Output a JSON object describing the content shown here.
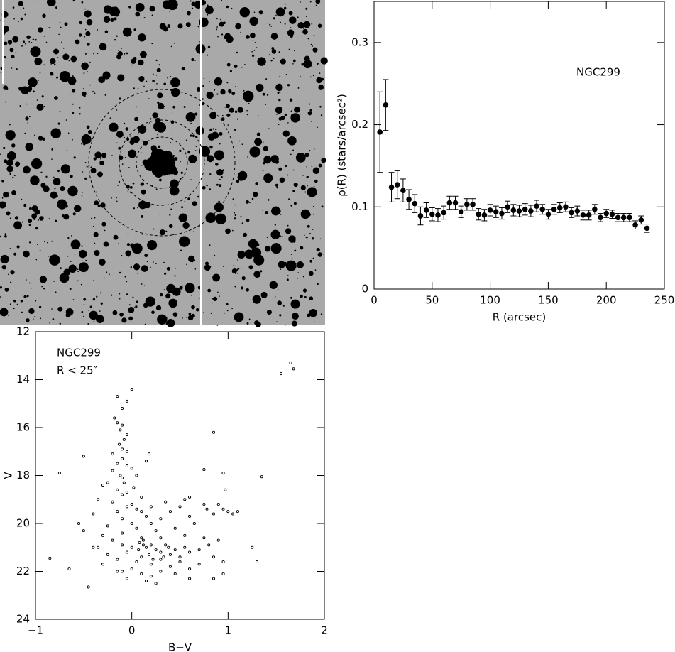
{
  "chart_data": [
    {
      "type": "errorbar",
      "annotation": "NGC299",
      "xlabel": "R (arcsec)",
      "ylabel": "ρ(R)  (stars/arcsec²)",
      "x": [
        5,
        10,
        15,
        20,
        25,
        30,
        35,
        40,
        45,
        50,
        55,
        60,
        65,
        70,
        75,
        80,
        85,
        90,
        95,
        100,
        105,
        110,
        115,
        120,
        125,
        130,
        135,
        140,
        145,
        150,
        155,
        160,
        165,
        170,
        175,
        180,
        185,
        190,
        195,
        200,
        205,
        210,
        215,
        220,
        225,
        230,
        235
      ],
      "values": [
        0.191,
        0.224,
        0.124,
        0.127,
        0.12,
        0.109,
        0.104,
        0.089,
        0.096,
        0.091,
        0.09,
        0.093,
        0.105,
        0.105,
        0.094,
        0.103,
        0.103,
        0.091,
        0.09,
        0.096,
        0.094,
        0.092,
        0.1,
        0.096,
        0.095,
        0.097,
        0.095,
        0.101,
        0.097,
        0.091,
        0.097,
        0.099,
        0.1,
        0.093,
        0.095,
        0.09,
        0.09,
        0.097,
        0.087,
        0.092,
        0.091,
        0.087,
        0.087,
        0.087,
        0.078,
        0.084,
        0.074
      ],
      "errors": [
        0.049,
        0.031,
        0.018,
        0.017,
        0.014,
        0.012,
        0.011,
        0.011,
        0.009,
        0.008,
        0.008,
        0.008,
        0.008,
        0.008,
        0.007,
        0.007,
        0.007,
        0.007,
        0.007,
        0.007,
        0.007,
        0.007,
        0.007,
        0.007,
        0.007,
        0.007,
        0.007,
        0.007,
        0.006,
        0.006,
        0.006,
        0.006,
        0.006,
        0.006,
        0.006,
        0.006,
        0.006,
        0.006,
        0.005,
        0.005,
        0.005,
        0.005,
        0.005,
        0.005,
        0.005,
        0.005,
        0.005
      ],
      "xlim": [
        0,
        250
      ],
      "xticks": [
        0,
        50,
        100,
        150,
        200,
        250
      ],
      "ylim": [
        0,
        0.35
      ],
      "yticks": [
        0,
        0.1,
        0.2,
        0.3
      ],
      "color": "#000000"
    },
    {
      "type": "scatter",
      "annotations": [
        "NGC299",
        "R < 25″"
      ],
      "xlabel": "B−V",
      "ylabel": "V",
      "x": [
        0.0,
        -0.15,
        -0.05,
        -0.1,
        -0.18,
        -0.15,
        -0.1,
        -0.12,
        -0.05,
        -0.08,
        -0.13,
        -0.1,
        -0.05,
        -0.2,
        -0.1,
        -0.15,
        -0.05,
        0.0,
        -0.2,
        -0.12,
        0.05,
        -0.1,
        -0.25,
        -0.08,
        0.02,
        -0.15,
        -0.05,
        -0.1,
        0.15,
        0.18,
        -0.3,
        0.1,
        -0.35,
        -0.2,
        0.0,
        -0.05,
        0.05,
        -0.15,
        0.1,
        0.2,
        0.35,
        0.4,
        0.55,
        0.6,
        0.5,
        0.3,
        0.15,
        -0.1,
        -0.4,
        -0.55,
        -0.25,
        0.0,
        0.05,
        0.2,
        0.45,
        0.65,
        0.6,
        0.75,
        0.78,
        0.85,
        0.9,
        0.95,
        1.0,
        1.05,
        1.1,
        0.97,
        0.25,
        -0.1,
        -0.3,
        0.1,
        0.3,
        0.55,
        -0.5,
        -0.4,
        -0.35,
        -0.2,
        -0.1,
        0.0,
        0.08,
        0.12,
        0.15,
        0.2,
        0.25,
        0.3,
        0.35,
        0.4,
        0.45,
        0.5,
        0.55,
        0.6,
        0.7,
        0.75,
        0.8,
        0.85,
        0.9,
        0.95,
        -0.25,
        -0.15,
        -0.05,
        0.05,
        0.1,
        0.2,
        0.3,
        0.4,
        0.5,
        0.6,
        0.7,
        -0.3,
        -0.1,
        0.0,
        0.1,
        0.2,
        0.3,
        0.45,
        0.6,
        0.85,
        0.95,
        -0.05,
        0.15,
        0.25,
        -0.15,
        0.07,
        0.18,
        0.22,
        0.33,
        0.38,
        0.12,
        1.55,
        1.65,
        1.68,
        1.35,
        0.85,
        -0.75,
        -0.5,
        -0.85,
        -0.65,
        -0.45,
        1.25,
        1.3,
        0.95,
        0.75
      ],
      "values": [
        14.4,
        14.7,
        14.9,
        15.2,
        15.6,
        15.8,
        15.9,
        16.1,
        16.3,
        16.5,
        16.7,
        16.9,
        17.0,
        17.1,
        17.3,
        17.5,
        17.6,
        17.7,
        17.8,
        18.0,
        18.0,
        18.1,
        18.3,
        18.3,
        18.5,
        18.6,
        18.7,
        18.8,
        17.4,
        17.1,
        18.4,
        18.9,
        19.0,
        19.1,
        19.2,
        19.3,
        19.4,
        19.5,
        19.5,
        19.3,
        19.1,
        19.5,
        19.0,
        18.9,
        19.3,
        19.8,
        19.7,
        19.8,
        19.6,
        20.0,
        20.1,
        20.0,
        20.2,
        20.0,
        20.2,
        20.0,
        19.7,
        19.2,
        19.4,
        19.6,
        19.2,
        19.4,
        19.5,
        19.6,
        19.5,
        18.6,
        20.3,
        20.4,
        20.5,
        20.6,
        20.6,
        20.5,
        20.3,
        21.0,
        21.0,
        20.7,
        20.9,
        21.0,
        20.8,
        20.7,
        21.0,
        20.9,
        21.1,
        21.2,
        20.9,
        21.3,
        21.1,
        21.4,
        21.0,
        21.2,
        21.1,
        20.6,
        20.9,
        21.4,
        20.7,
        21.6,
        21.3,
        21.5,
        21.2,
        21.6,
        21.4,
        21.7,
        21.5,
        21.8,
        21.6,
        21.9,
        21.7,
        21.7,
        22.0,
        21.9,
        22.1,
        22.2,
        22.0,
        22.1,
        22.3,
        22.3,
        22.1,
        22.3,
        22.4,
        22.5,
        22.0,
        21.1,
        21.3,
        21.5,
        21.4,
        21.0,
        20.9,
        13.75,
        13.3,
        13.55,
        18.05,
        16.2,
        17.9,
        17.2,
        21.45,
        21.9,
        22.65,
        21.0,
        21.6,
        17.9,
        17.75
      ],
      "xlim": [
        -1,
        2
      ],
      "xticks": [
        {
          "value": -1,
          "label": "−1"
        },
        0,
        1,
        2
      ],
      "ylim": [
        24,
        12
      ],
      "yticks": [
        12,
        14,
        16,
        18,
        20,
        22,
        24
      ],
      "color": "#000000"
    }
  ]
}
